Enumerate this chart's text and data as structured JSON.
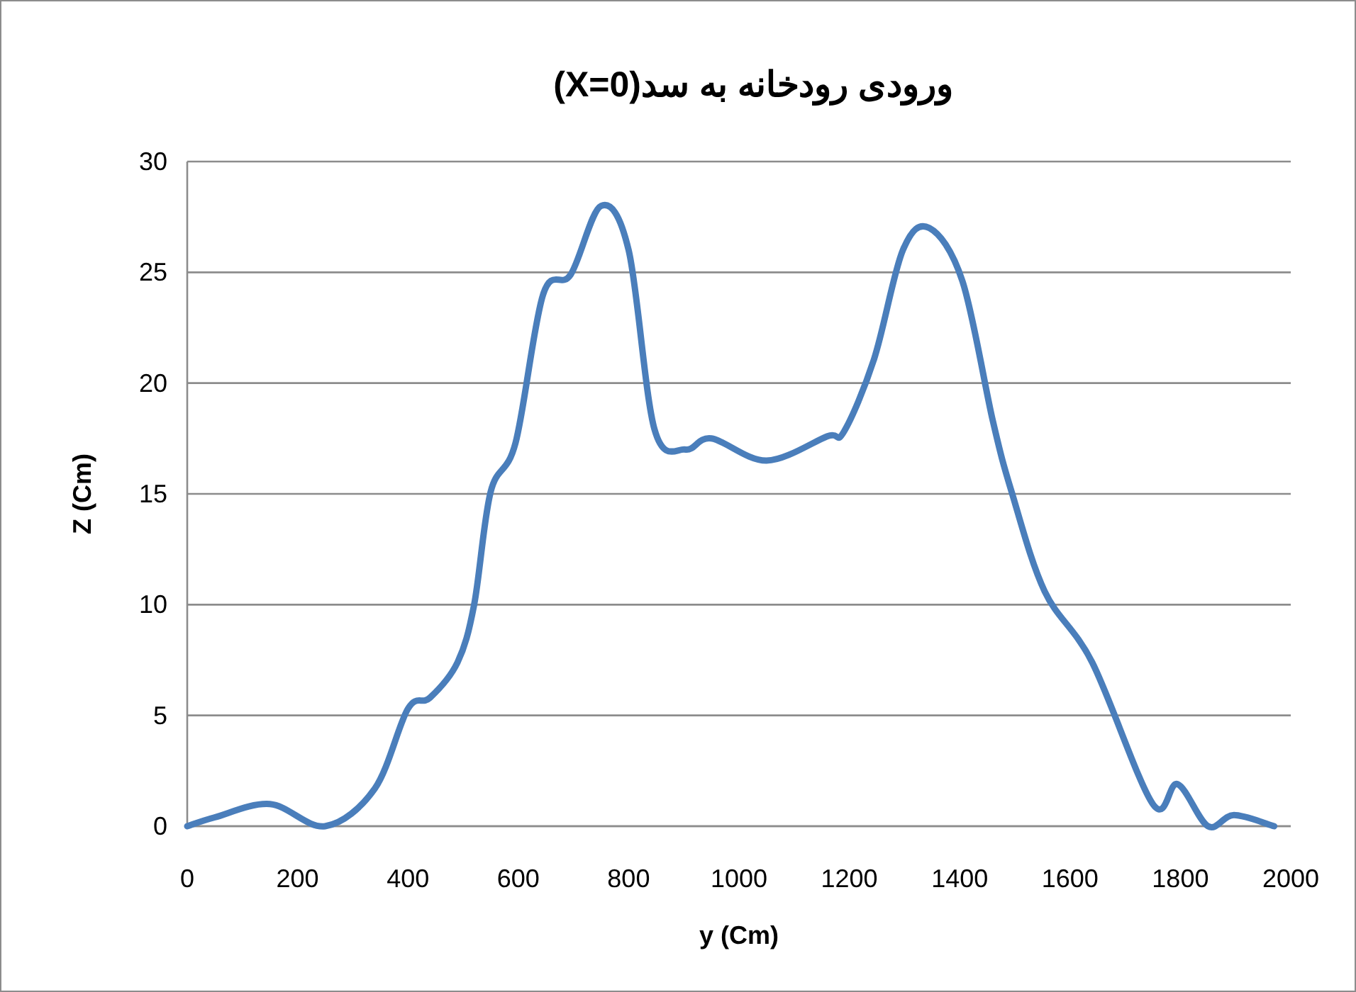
{
  "chart_data": {
    "type": "line",
    "title": "ورودی رودخانه به سد(X=0)",
    "xlabel": "y (Cm)",
    "ylabel": "Z (Cm)",
    "x": [
      0,
      50,
      150,
      250,
      340,
      400,
      440,
      490,
      520,
      550,
      595,
      645,
      695,
      750,
      800,
      847,
      903,
      950,
      1050,
      1160,
      1190,
      1245,
      1297,
      1345,
      1405,
      1460,
      1494,
      1554,
      1640,
      1750,
      1795,
      1850,
      1897,
      1970
    ],
    "series": [
      {
        "color": "#4a7ebb",
        "values": [
          0,
          0.4,
          1,
          0,
          1.7,
          5.3,
          5.8,
          7.4,
          10,
          15.1,
          17.3,
          24,
          24.9,
          28,
          26,
          17.9,
          17,
          17.5,
          16.5,
          17.6,
          17.8,
          21.1,
          26,
          27,
          24.6,
          18.3,
          15.1,
          10.6,
          7.4,
          1,
          1.9,
          0,
          0.5,
          0
        ]
      }
    ],
    "xlim": [
      0,
      2000
    ],
    "ylim": [
      0,
      30
    ],
    "xticks": [
      0,
      200,
      400,
      600,
      800,
      1000,
      1200,
      1400,
      1600,
      1800,
      2000
    ],
    "yticks": [
      0,
      5,
      10,
      15,
      20,
      25,
      30
    ],
    "grid": "y"
  }
}
